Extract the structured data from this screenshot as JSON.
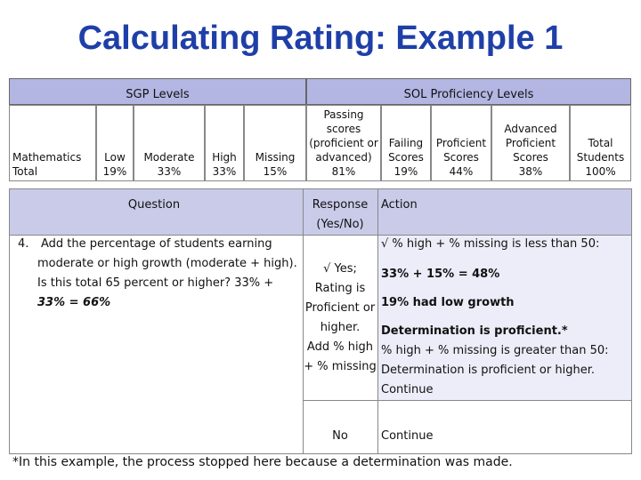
{
  "title": "Calculating Rating: Example 1",
  "headers": {
    "sgp": "SGP Levels",
    "sol": "SOL Proficiency Levels"
  },
  "row_label": [
    "Mathematics",
    "Total"
  ],
  "sgp_cols": [
    {
      "label": [
        "Low"
      ],
      "value": "19%"
    },
    {
      "label": [
        "Moderate"
      ],
      "value": "33%"
    },
    {
      "label": [
        "High"
      ],
      "value": "33%"
    },
    {
      "label": [
        "Missing"
      ],
      "value": "15%"
    }
  ],
  "sol_cols": [
    {
      "label": [
        "Passing",
        "scores",
        "(proficient or",
        "advanced)"
      ],
      "value": "81%"
    },
    {
      "label": [
        "Failing",
        "Scores"
      ],
      "value": "19%"
    },
    {
      "label": [
        "Proficient",
        "Scores"
      ],
      "value": "44%"
    },
    {
      "label": [
        "Advanced",
        "Proficient",
        "Scores"
      ],
      "value": "38%"
    },
    {
      "label": [
        "Total",
        "Students"
      ],
      "value": "100%"
    }
  ],
  "q_headers": {
    "question": "Question",
    "response": [
      "Response",
      "(Yes/No)"
    ],
    "action": "Action"
  },
  "question": {
    "number": "4.",
    "lines": [
      "Add the percentage of students earning",
      "moderate or high growth (moderate + high).",
      "Is this total 65 percent or higher? 33% +",
      "33% = 66%"
    ]
  },
  "response_yes": [
    "√ Yes;",
    "Rating is",
    "Proficient or",
    "higher.",
    "Add % high",
    "+ % missing"
  ],
  "action_lines": [
    "√  % high + % missing is less than 50:",
    "33% + 15% = 48%",
    "19% had low growth",
    "Determination is proficient.*",
    "%  high + % missing is greater than 50:",
    "Determination is proficient or higher.",
    "Continue"
  ],
  "response_no": "No",
  "action_no": "Continue",
  "footnote": "*In this example, the process stopped here because a determination was made."
}
